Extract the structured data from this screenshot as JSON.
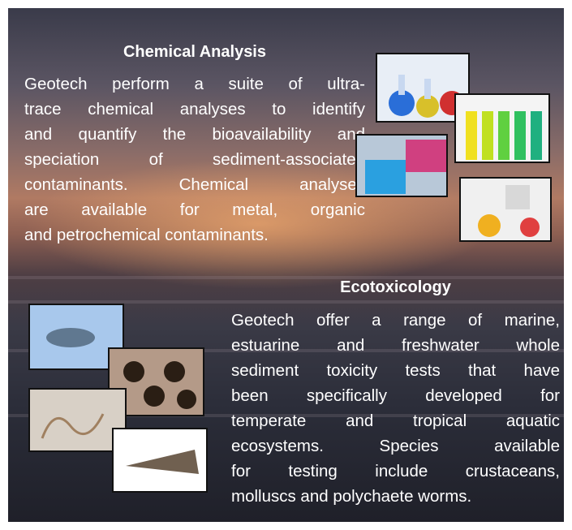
{
  "sections": [
    {
      "heading": "Chemical Analysis",
      "lines": [
        "Geotech perform a suite of ultra-",
        "trace chemical analyses to identify",
        "and quantify the bioavailability and",
        "speciation of sediment-associated",
        "contaminants. Chemical analyses",
        "are available for metal, organic",
        "and petrochemical contaminants."
      ]
    },
    {
      "heading": "Ecotoxicology",
      "lines": [
        "Geotech offer a range of marine,",
        "estuarine and freshwater whole",
        "sediment toxicity tests that have",
        "been specifically developed for",
        "temperate and tropical aquatic",
        "ecosystems. Species available",
        "for testing include crustaceans,",
        "molluscs and polychaete worms."
      ]
    }
  ]
}
